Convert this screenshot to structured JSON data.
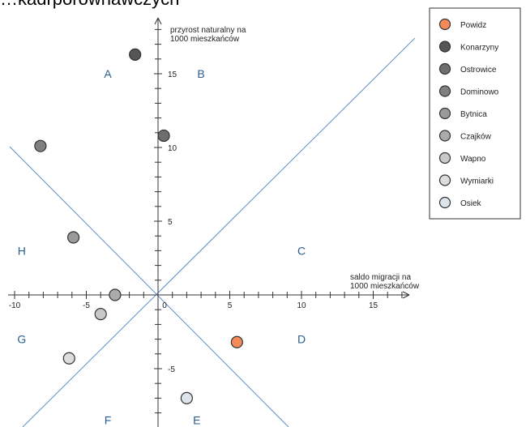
{
  "heading_fragment": "…kadrporównawczych",
  "chart_data": {
    "type": "scatter",
    "xlabel_lines": [
      "saldo migracji na",
      "1000 mieszkańców"
    ],
    "ylabel_lines": [
      "przyrost naturalny na",
      "1000 mieszkańców"
    ],
    "xlim": [
      -10,
      17
    ],
    "ylim": [
      -9,
      19
    ],
    "x_ticks": [
      -10,
      -5,
      0,
      5,
      10,
      15
    ],
    "y_ticks": [
      -5,
      5,
      10,
      15
    ],
    "x_tick_labels": [
      "-10",
      "-5",
      "0",
      "5",
      "10",
      "15"
    ],
    "y_tick_labels": [
      "-5",
      "5",
      "10",
      "15"
    ],
    "grid": false,
    "legend_position": "top-right",
    "sectors": [
      {
        "label": "A",
        "x": -3.5,
        "y": 15
      },
      {
        "label": "B",
        "x": 3,
        "y": 15
      },
      {
        "label": "C",
        "x": 10,
        "y": 3
      },
      {
        "label": "D",
        "x": 10,
        "y": -3
      },
      {
        "label": "E",
        "x": 2.7,
        "y": -8.5
      },
      {
        "label": "F",
        "x": -3.5,
        "y": -8.5
      },
      {
        "label": "G",
        "x": -9.5,
        "y": -3
      },
      {
        "label": "H",
        "x": -9.5,
        "y": 3
      }
    ],
    "series": [
      {
        "name": "Powidz",
        "x": 5.5,
        "y": -3.2,
        "color": "#f4895a"
      },
      {
        "name": "Konarzyny",
        "x": -1.6,
        "y": 16.3,
        "color": "#555555"
      },
      {
        "name": "Ostrowice",
        "x": 0.4,
        "y": 10.8,
        "color": "#6e6e6e"
      },
      {
        "name": "Dominowo",
        "x": -8.2,
        "y": 10.1,
        "color": "#808080"
      },
      {
        "name": "Bytnica",
        "x": -5.9,
        "y": 3.9,
        "color": "#9a9a9a"
      },
      {
        "name": "Czajków",
        "x": -3.0,
        "y": 0,
        "color": "#ababab"
      },
      {
        "name": "Wapno",
        "x": -4.0,
        "y": -1.3,
        "color": "#c8c8c8"
      },
      {
        "name": "Wymiarki",
        "x": -6.2,
        "y": -4.3,
        "color": "#dcdcdc"
      },
      {
        "name": "Osiek",
        "x": 2.0,
        "y": -7.0,
        "color": "#dde4ec"
      }
    ],
    "axis_color": "#333333",
    "divider_color": "#5b8fc4"
  }
}
